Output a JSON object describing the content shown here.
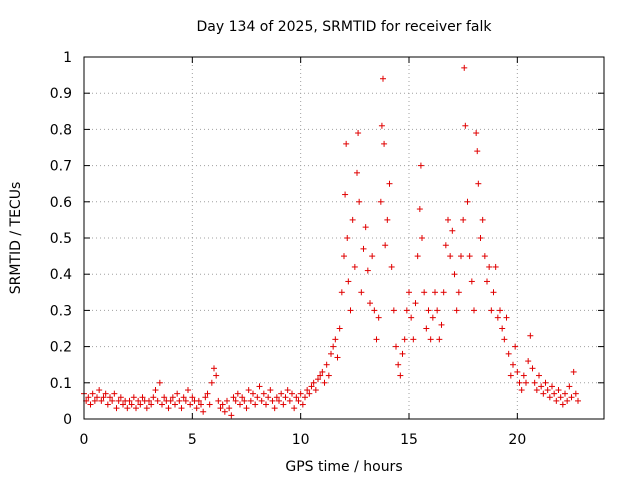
{
  "chart_data": {
    "type": "scatter",
    "title": "Day 134 of 2025, SRMTID for receiver falk",
    "xlabel": "GPS time / hours",
    "ylabel": "SRMTID / TECUs",
    "xlim": [
      0,
      24
    ],
    "ylim": [
      0,
      1
    ],
    "xticks": [
      0,
      5,
      10,
      15,
      20
    ],
    "xtick_labels": [
      "0",
      "5",
      "10",
      "15",
      "20"
    ],
    "yticks": [
      0,
      0.1,
      0.2,
      0.3,
      0.4,
      0.5,
      0.6,
      0.7,
      0.8,
      0.9,
      1
    ],
    "ytick_labels": [
      "0",
      "0.1",
      "0.2",
      "0.3",
      "0.4",
      "0.5",
      "0.6",
      "0.7",
      "0.8",
      "0.9",
      "1"
    ],
    "grid": true,
    "marker": "+",
    "series": [
      {
        "name": "SRMTID",
        "color": "#e00000",
        "points": [
          [
            0.0,
            0.07
          ],
          [
            0.1,
            0.05
          ],
          [
            0.2,
            0.06
          ],
          [
            0.3,
            0.04
          ],
          [
            0.4,
            0.07
          ],
          [
            0.5,
            0.05
          ],
          [
            0.6,
            0.06
          ],
          [
            0.7,
            0.08
          ],
          [
            0.8,
            0.05
          ],
          [
            0.9,
            0.06
          ],
          [
            1.0,
            0.07
          ],
          [
            1.1,
            0.04
          ],
          [
            1.2,
            0.06
          ],
          [
            1.3,
            0.05
          ],
          [
            1.4,
            0.07
          ],
          [
            1.5,
            0.03
          ],
          [
            1.6,
            0.05
          ],
          [
            1.7,
            0.06
          ],
          [
            1.8,
            0.04
          ],
          [
            1.9,
            0.05
          ],
          [
            2.0,
            0.03
          ],
          [
            2.1,
            0.05
          ],
          [
            2.2,
            0.04
          ],
          [
            2.3,
            0.06
          ],
          [
            2.4,
            0.03
          ],
          [
            2.5,
            0.05
          ],
          [
            2.6,
            0.04
          ],
          [
            2.7,
            0.06
          ],
          [
            2.8,
            0.05
          ],
          [
            2.9,
            0.03
          ],
          [
            3.0,
            0.05
          ],
          [
            3.1,
            0.04
          ],
          [
            3.2,
            0.06
          ],
          [
            3.3,
            0.08
          ],
          [
            3.4,
            0.05
          ],
          [
            3.5,
            0.1
          ],
          [
            3.6,
            0.04
          ],
          [
            3.7,
            0.06
          ],
          [
            3.8,
            0.05
          ],
          [
            3.9,
            0.03
          ],
          [
            4.0,
            0.05
          ],
          [
            4.1,
            0.06
          ],
          [
            4.2,
            0.04
          ],
          [
            4.3,
            0.07
          ],
          [
            4.4,
            0.05
          ],
          [
            4.5,
            0.03
          ],
          [
            4.6,
            0.06
          ],
          [
            4.7,
            0.05
          ],
          [
            4.8,
            0.08
          ],
          [
            4.9,
            0.04
          ],
          [
            5.0,
            0.06
          ],
          [
            5.1,
            0.05
          ],
          [
            5.2,
            0.03
          ],
          [
            5.3,
            0.05
          ],
          [
            5.4,
            0.04
          ],
          [
            5.5,
            0.02
          ],
          [
            5.6,
            0.06
          ],
          [
            5.7,
            0.07
          ],
          [
            5.8,
            0.04
          ],
          [
            5.9,
            0.1
          ],
          [
            6.0,
            0.14
          ],
          [
            6.1,
            0.12
          ],
          [
            6.2,
            0.05
          ],
          [
            6.3,
            0.03
          ],
          [
            6.4,
            0.04
          ],
          [
            6.5,
            0.02
          ],
          [
            6.6,
            0.05
          ],
          [
            6.7,
            0.03
          ],
          [
            6.8,
            0.01
          ],
          [
            6.9,
            0.06
          ],
          [
            7.0,
            0.05
          ],
          [
            7.1,
            0.07
          ],
          [
            7.2,
            0.04
          ],
          [
            7.3,
            0.06
          ],
          [
            7.4,
            0.05
          ],
          [
            7.5,
            0.03
          ],
          [
            7.6,
            0.08
          ],
          [
            7.7,
            0.05
          ],
          [
            7.8,
            0.07
          ],
          [
            7.9,
            0.04
          ],
          [
            8.0,
            0.06
          ],
          [
            8.1,
            0.09
          ],
          [
            8.2,
            0.05
          ],
          [
            8.3,
            0.07
          ],
          [
            8.4,
            0.04
          ],
          [
            8.5,
            0.06
          ],
          [
            8.6,
            0.08
          ],
          [
            8.7,
            0.05
          ],
          [
            8.8,
            0.03
          ],
          [
            8.9,
            0.06
          ],
          [
            9.0,
            0.05
          ],
          [
            9.1,
            0.07
          ],
          [
            9.2,
            0.04
          ],
          [
            9.3,
            0.06
          ],
          [
            9.4,
            0.08
          ],
          [
            9.5,
            0.05
          ],
          [
            9.6,
            0.07
          ],
          [
            9.7,
            0.03
          ],
          [
            9.8,
            0.06
          ],
          [
            9.9,
            0.05
          ],
          [
            10.0,
            0.07
          ],
          [
            10.1,
            0.04
          ],
          [
            10.2,
            0.06
          ],
          [
            10.3,
            0.08
          ],
          [
            10.4,
            0.07
          ],
          [
            10.5,
            0.09
          ],
          [
            10.6,
            0.1
          ],
          [
            10.7,
            0.08
          ],
          [
            10.8,
            0.11
          ],
          [
            10.9,
            0.12
          ],
          [
            11.0,
            0.13
          ],
          [
            11.1,
            0.1
          ],
          [
            11.2,
            0.15
          ],
          [
            11.3,
            0.12
          ],
          [
            11.4,
            0.18
          ],
          [
            11.5,
            0.2
          ],
          [
            11.6,
            0.22
          ],
          [
            11.7,
            0.17
          ],
          [
            11.8,
            0.25
          ],
          [
            11.9,
            0.35
          ],
          [
            12.0,
            0.45
          ],
          [
            12.05,
            0.62
          ],
          [
            12.1,
            0.76
          ],
          [
            12.15,
            0.5
          ],
          [
            12.2,
            0.38
          ],
          [
            12.3,
            0.3
          ],
          [
            12.4,
            0.55
          ],
          [
            12.5,
            0.42
          ],
          [
            12.6,
            0.68
          ],
          [
            12.65,
            0.79
          ],
          [
            12.7,
            0.6
          ],
          [
            12.8,
            0.35
          ],
          [
            12.9,
            0.47
          ],
          [
            13.0,
            0.53
          ],
          [
            13.1,
            0.41
          ],
          [
            13.2,
            0.32
          ],
          [
            13.3,
            0.45
          ],
          [
            13.4,
            0.3
          ],
          [
            13.5,
            0.22
          ],
          [
            13.6,
            0.28
          ],
          [
            13.7,
            0.6
          ],
          [
            13.75,
            0.81
          ],
          [
            13.8,
            0.94
          ],
          [
            13.85,
            0.76
          ],
          [
            13.9,
            0.48
          ],
          [
            14.0,
            0.55
          ],
          [
            14.1,
            0.65
          ],
          [
            14.2,
            0.42
          ],
          [
            14.3,
            0.3
          ],
          [
            14.4,
            0.2
          ],
          [
            14.5,
            0.15
          ],
          [
            14.6,
            0.12
          ],
          [
            14.7,
            0.18
          ],
          [
            14.8,
            0.22
          ],
          [
            14.9,
            0.3
          ],
          [
            15.0,
            0.35
          ],
          [
            15.1,
            0.28
          ],
          [
            15.2,
            0.22
          ],
          [
            15.3,
            0.32
          ],
          [
            15.4,
            0.45
          ],
          [
            15.5,
            0.58
          ],
          [
            15.55,
            0.7
          ],
          [
            15.6,
            0.5
          ],
          [
            15.7,
            0.35
          ],
          [
            15.8,
            0.25
          ],
          [
            15.9,
            0.3
          ],
          [
            16.0,
            0.22
          ],
          [
            16.1,
            0.28
          ],
          [
            16.2,
            0.35
          ],
          [
            16.3,
            0.3
          ],
          [
            16.4,
            0.22
          ],
          [
            16.5,
            0.26
          ],
          [
            16.6,
            0.35
          ],
          [
            16.7,
            0.48
          ],
          [
            16.8,
            0.55
          ],
          [
            16.9,
            0.45
          ],
          [
            17.0,
            0.52
          ],
          [
            17.1,
            0.4
          ],
          [
            17.2,
            0.3
          ],
          [
            17.3,
            0.35
          ],
          [
            17.4,
            0.45
          ],
          [
            17.5,
            0.55
          ],
          [
            17.55,
            0.97
          ],
          [
            17.6,
            0.81
          ],
          [
            17.7,
            0.6
          ],
          [
            17.8,
            0.45
          ],
          [
            17.9,
            0.38
          ],
          [
            18.0,
            0.3
          ],
          [
            18.1,
            0.79
          ],
          [
            18.15,
            0.74
          ],
          [
            18.2,
            0.65
          ],
          [
            18.3,
            0.5
          ],
          [
            18.4,
            0.55
          ],
          [
            18.5,
            0.45
          ],
          [
            18.6,
            0.38
          ],
          [
            18.7,
            0.42
          ],
          [
            18.8,
            0.3
          ],
          [
            18.9,
            0.35
          ],
          [
            19.0,
            0.42
          ],
          [
            19.1,
            0.28
          ],
          [
            19.2,
            0.3
          ],
          [
            19.3,
            0.25
          ],
          [
            19.4,
            0.22
          ],
          [
            19.5,
            0.28
          ],
          [
            19.6,
            0.18
          ],
          [
            19.7,
            0.12
          ],
          [
            19.8,
            0.15
          ],
          [
            19.9,
            0.2
          ],
          [
            20.0,
            0.13
          ],
          [
            20.1,
            0.1
          ],
          [
            20.2,
            0.08
          ],
          [
            20.3,
            0.12
          ],
          [
            20.4,
            0.1
          ],
          [
            20.5,
            0.16
          ],
          [
            20.6,
            0.23
          ],
          [
            20.7,
            0.14
          ],
          [
            20.8,
            0.1
          ],
          [
            20.9,
            0.08
          ],
          [
            21.0,
            0.12
          ],
          [
            21.1,
            0.09
          ],
          [
            21.2,
            0.07
          ],
          [
            21.3,
            0.1
          ],
          [
            21.4,
            0.08
          ],
          [
            21.5,
            0.06
          ],
          [
            21.6,
            0.09
          ],
          [
            21.7,
            0.07
          ],
          [
            21.8,
            0.05
          ],
          [
            21.9,
            0.08
          ],
          [
            22.0,
            0.06
          ],
          [
            22.1,
            0.04
          ],
          [
            22.2,
            0.07
          ],
          [
            22.3,
            0.05
          ],
          [
            22.4,
            0.09
          ],
          [
            22.5,
            0.06
          ],
          [
            22.6,
            0.13
          ],
          [
            22.7,
            0.07
          ],
          [
            22.8,
            0.05
          ]
        ]
      }
    ]
  }
}
